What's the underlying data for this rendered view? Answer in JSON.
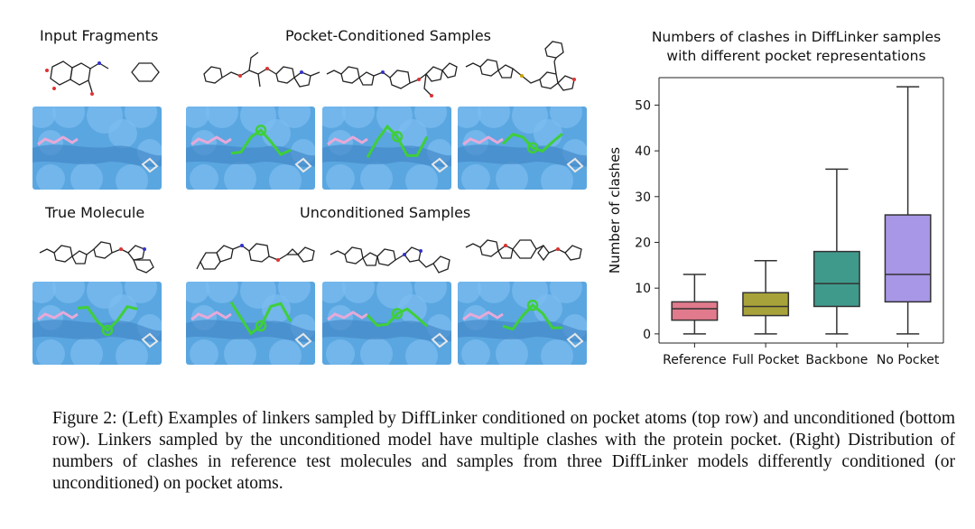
{
  "left_panel": {
    "input_fragments_title": "Input Fragments",
    "pocket_conditioned_title": "Pocket-Conditioned Samples",
    "true_molecule_title": "True Molecule",
    "unconditioned_title": "Unconditioned Samples",
    "surface_color": "#5aa6e0",
    "linker_color": "#3fcf3a",
    "fragment_color": "#e6a9d8"
  },
  "chart_data": {
    "type": "box",
    "title": "Numbers of clashes in DiffLinker samples\nwith different pocket representations",
    "title_lines": [
      "Numbers of clashes in DiffLinker samples",
      "with different pocket representations"
    ],
    "ylabel": "Number of clashes",
    "xlabel": "",
    "ylim": [
      -2,
      56
    ],
    "yticks": [
      0,
      10,
      20,
      30,
      40,
      50
    ],
    "categories": [
      "Reference",
      "Full Pocket",
      "Backbone",
      "No Pocket"
    ],
    "boxes": [
      {
        "name": "Reference",
        "min": 0,
        "q1": 3,
        "median": 5.5,
        "q3": 7,
        "max": 13,
        "color": "#e07a8c"
      },
      {
        "name": "Full Pocket",
        "min": 0,
        "q1": 4,
        "median": 6,
        "q3": 9,
        "max": 16,
        "color": "#a8a23a"
      },
      {
        "name": "Backbone",
        "min": 0,
        "q1": 6,
        "median": 11,
        "q3": 18,
        "max": 36,
        "color": "#3f9a8c"
      },
      {
        "name": "No Pocket",
        "min": 0,
        "q1": 7,
        "median": 13,
        "q3": 26,
        "max": 54,
        "color": "#a896e6"
      }
    ],
    "grid": false
  },
  "caption": {
    "text": "Figure 2: (Left) Examples of linkers sampled by DiffLinker conditioned on pocket atoms (top row) and unconditioned (bottom row). Linkers sampled by the unconditioned model have multiple clashes with the protein pocket. (Right) Distribution of numbers of clashes in reference test molecules and samples from three DiffLinker models differently conditioned (or unconditioned) on pocket atoms."
  }
}
